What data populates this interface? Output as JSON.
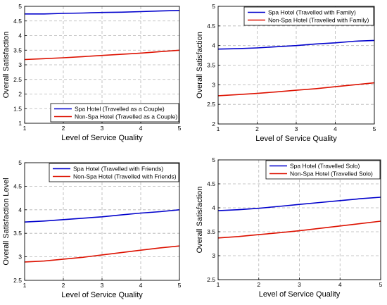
{
  "chart_data": [
    {
      "type": "line",
      "xlabel": "Level of Service Quality",
      "ylabel": "Overall Satisfaction",
      "xlim": [
        1,
        5
      ],
      "ylim": [
        1,
        5
      ],
      "xticks": [
        "1",
        "2",
        "3",
        "4",
        "5"
      ],
      "yticks": [
        "1",
        "1.5",
        "2",
        "2.5",
        "3",
        "3.5",
        "4",
        "4.5",
        "5"
      ],
      "grid": true,
      "legend": "bottom-right",
      "series": [
        {
          "name": "Spa Hotel (Travelled as a Couple)",
          "color": "#0000cc",
          "x": [
            1,
            1.5,
            2,
            2.5,
            3,
            3.5,
            4,
            4.5,
            5
          ],
          "y": [
            4.74,
            4.74,
            4.76,
            4.77,
            4.79,
            4.8,
            4.82,
            4.84,
            4.86
          ]
        },
        {
          "name": "Non-Spa Hotel (Travelled as a Couple)",
          "color": "#dd1100",
          "x": [
            1,
            1.5,
            2,
            2.5,
            3,
            3.5,
            4,
            4.5,
            5
          ],
          "y": [
            3.18,
            3.21,
            3.24,
            3.28,
            3.32,
            3.36,
            3.4,
            3.45,
            3.5
          ]
        }
      ]
    },
    {
      "type": "line",
      "xlabel": "Level of Service Quality",
      "ylabel": "Overall Satisfaction",
      "xlim": [
        1,
        5
      ],
      "ylim": [
        2,
        5
      ],
      "xticks": [
        "1",
        "2",
        "3",
        "4",
        "5"
      ],
      "yticks": [
        "2",
        "2.5",
        "3",
        "3.5",
        "4",
        "4.5",
        "5"
      ],
      "grid": true,
      "legend": "top-right",
      "series": [
        {
          "name": "Spa Hotel (Travelled with Family)",
          "color": "#0000cc",
          "x": [
            1,
            1.5,
            2,
            2.5,
            3,
            3.5,
            4,
            4.5,
            5
          ],
          "y": [
            3.91,
            3.92,
            3.94,
            3.97,
            4.0,
            4.04,
            4.07,
            4.11,
            4.13
          ]
        },
        {
          "name": "Non-Spa Hotel (Travelled with Family)",
          "color": "#dd1100",
          "x": [
            1,
            1.5,
            2,
            2.5,
            3,
            3.5,
            4,
            4.5,
            5
          ],
          "y": [
            2.72,
            2.75,
            2.78,
            2.82,
            2.86,
            2.9,
            2.95,
            3.0,
            3.05
          ]
        }
      ]
    },
    {
      "type": "line",
      "xlabel": "Level of Service Quality",
      "ylabel": "Overall Satisfaction Level",
      "xlim": [
        1,
        5
      ],
      "ylim": [
        2.5,
        5
      ],
      "xticks": [
        "1",
        "2",
        "3",
        "4",
        "5"
      ],
      "yticks": [
        "2.5",
        "3",
        "3.5",
        "4",
        "4.5",
        "5"
      ],
      "grid": true,
      "legend": "top-right",
      "series": [
        {
          "name": "Spa Hotel (Travelled with Friends)",
          "color": "#0000cc",
          "x": [
            1,
            1.5,
            2,
            2.5,
            3,
            3.5,
            4,
            4.5,
            5
          ],
          "y": [
            3.74,
            3.76,
            3.79,
            3.82,
            3.85,
            3.89,
            3.93,
            3.96,
            4.0
          ]
        },
        {
          "name": "Non-Spa Hotel (Travelled with Friends)",
          "color": "#dd1100",
          "x": [
            1,
            1.5,
            2,
            2.5,
            3,
            3.5,
            4,
            4.5,
            5
          ],
          "y": [
            2.89,
            2.91,
            2.95,
            2.99,
            3.04,
            3.09,
            3.14,
            3.19,
            3.23
          ]
        }
      ]
    },
    {
      "type": "line",
      "xlabel": "Level of Service Quality",
      "ylabel": "Overall Satisfaction",
      "xlim": [
        1,
        5
      ],
      "ylim": [
        2.5,
        5
      ],
      "xticks": [
        "1",
        "2",
        "3",
        "4",
        "5"
      ],
      "yticks": [
        "2.5",
        "3",
        "3.5",
        "4",
        "4.5",
        "5"
      ],
      "grid": true,
      "legend": "top-right",
      "series": [
        {
          "name": "Spa Hotel (Travelled Solo)",
          "color": "#0000cc",
          "x": [
            1,
            1.5,
            2,
            2.5,
            3,
            3.5,
            4,
            4.5,
            5
          ],
          "y": [
            3.94,
            3.96,
            3.99,
            4.03,
            4.07,
            4.11,
            4.15,
            4.19,
            4.22
          ]
        },
        {
          "name": "Non-Spa Hotel (Travelled Solo)",
          "color": "#dd1100",
          "x": [
            1,
            1.5,
            2,
            2.5,
            3,
            3.5,
            4,
            4.5,
            5
          ],
          "y": [
            3.37,
            3.4,
            3.44,
            3.48,
            3.52,
            3.57,
            3.62,
            3.67,
            3.72
          ]
        }
      ]
    }
  ]
}
